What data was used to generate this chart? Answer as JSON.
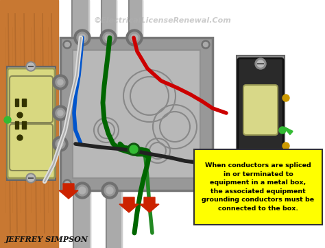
{
  "bg_color": "#ffffff",
  "watermark": "©ElectricalLicenseRenewal.Com",
  "watermark_color": "#b0b0b0",
  "author": "JEFFREY SIMPSON",
  "note_text": "When conductors are spliced\nin or terminated to\nequipment in a metal box,\nthe associated equipment\ngrounding conductors must be\nconnected to the box.",
  "note_bg": "#ffff00",
  "note_border": "#333333",
  "wood_color": "#c87832",
  "wood_mid": "#b06828",
  "wood_dark": "#8a5020",
  "metal_box_face": "#989898",
  "metal_box_rim": "#787878",
  "metal_box_inner": "#b8b8b8",
  "outlet_plate": "#c8c870",
  "outlet_face": "#d8d880",
  "switch_plate": "#888888",
  "switch_dark": "#333333",
  "switch_toggle": "#d8d888",
  "conduit_main": "#aaaaaa",
  "conduit_dark": "#888888",
  "conduit_light": "#cccccc",
  "wire_red": "#cc0000",
  "wire_black": "#222222",
  "wire_white": "#dddddd",
  "wire_green": "#006600",
  "wire_green2": "#228822",
  "wire_blue": "#0055cc",
  "arrow_yellow": "#e8d000",
  "arrow_red": "#cc2200",
  "green_dot": "#33bb33"
}
